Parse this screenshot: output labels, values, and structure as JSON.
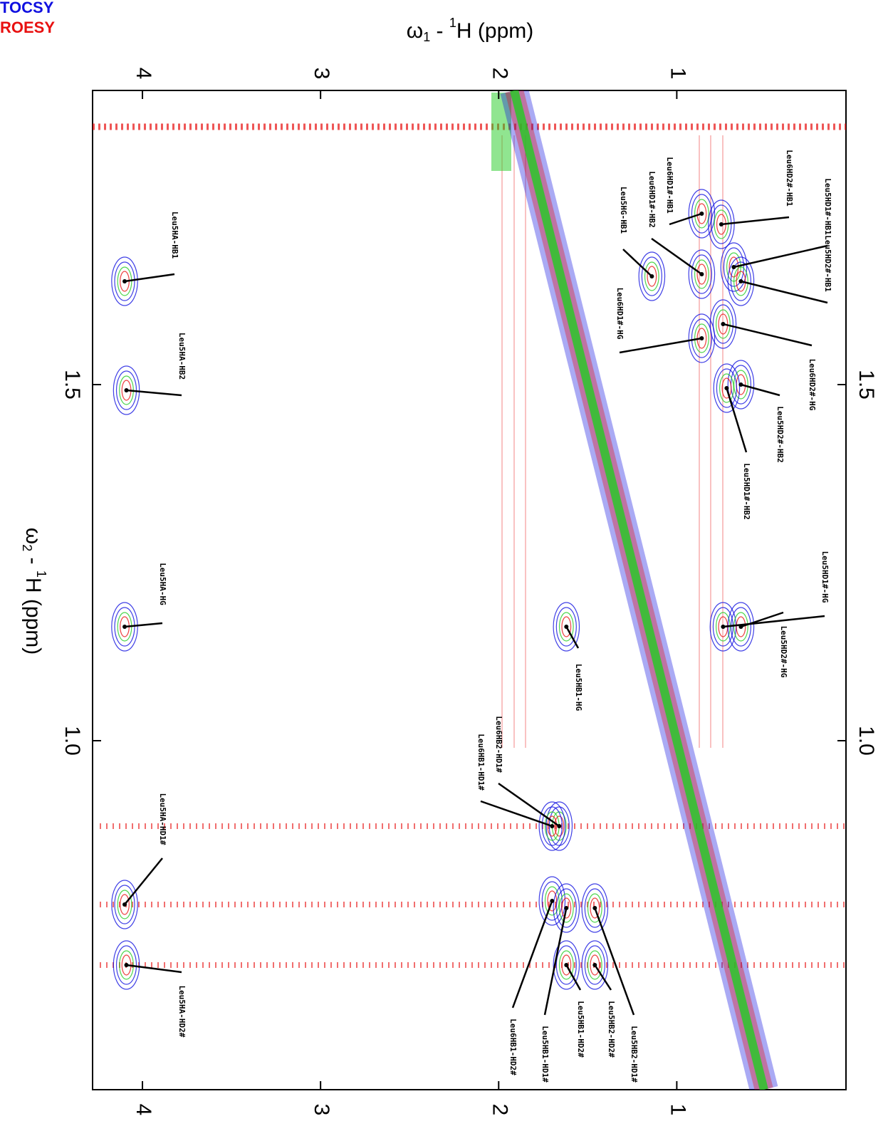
{
  "chart_data": {
    "type": "nmr2d",
    "legend": [
      {
        "name": "TOCSY",
        "color": "#1010e0"
      },
      {
        "name": "ROESY",
        "color": "#e81010"
      }
    ],
    "xlabel": [
      "ω",
      "1",
      " - ",
      "1",
      "H  (ppm)"
    ],
    "ylabel": [
      "ω",
      "2",
      " - ",
      "1",
      "H  (ppm)"
    ],
    "xlim": [
      4.28,
      0.05
    ],
    "ylim": [
      0.51,
      1.913
    ],
    "xticks": [
      4,
      3,
      2,
      1
    ],
    "yticks": [
      1.5,
      {
        "value": 1,
        "label": "1.0"
      }
    ],
    "peaks": [
      {
        "label": "Leu5HA-HB1",
        "x": 4.1,
        "y": 1.645
      },
      {
        "label": "Leu5HA-HB2",
        "x": 4.09,
        "y": 1.492
      },
      {
        "label": "Leu5HA-HG",
        "x": 4.1,
        "y": 1.16
      },
      {
        "label": "Leu5HA-HD1#",
        "x": 4.1,
        "y": 0.77
      },
      {
        "label": "Leu5HA-HD2#",
        "x": 4.09,
        "y": 0.685
      },
      {
        "label": "Leu5HG-HB1",
        "x": 1.14,
        "y": 1.652
      },
      {
        "label": "Leu6HD1#-HB1",
        "x": 0.86,
        "y": 1.74
      },
      {
        "label": "Leu6HD1#-HB2",
        "x": 0.86,
        "y": 1.655
      },
      {
        "label": "Leu6HD2#-HB1",
        "x": 0.75,
        "y": 1.725
      },
      {
        "label": "Leu5HD1#-HB1",
        "x": 0.68,
        "y": 1.665
      },
      {
        "label": "Leu5HD2#-HB1",
        "x": 0.64,
        "y": 1.645
      },
      {
        "label": "Leu6HD1#-HG",
        "x": 0.86,
        "y": 1.565
      },
      {
        "label": "Leu6HD2#-HG",
        "x": 0.74,
        "y": 1.585
      },
      {
        "label": "Leu5HD2#-HB2",
        "x": 0.64,
        "y": 1.5
      },
      {
        "label": "Leu5HD1#-HB2",
        "x": 0.72,
        "y": 1.495
      },
      {
        "label": "Leu5HD1#-HG",
        "x": 0.74,
        "y": 1.16
      },
      {
        "label": "Leu5HD2#-HG",
        "x": 0.64,
        "y": 1.16
      },
      {
        "label": "Leu5HB1-HG",
        "x": 1.62,
        "y": 1.16
      },
      {
        "label": "Leu6HB2-HD1#",
        "x": 1.66,
        "y": 0.88
      },
      {
        "label": "Leu6HB1-HD1#",
        "x": 1.7,
        "y": 0.88
      },
      {
        "label": "Leu6HB1-HD2#",
        "x": 1.7,
        "y": 0.775
      },
      {
        "label": "Leu5HB1-HD1#",
        "x": 1.62,
        "y": 0.765
      },
      {
        "label": "Leu5HB1-HD2#",
        "x": 1.62,
        "y": 0.685
      },
      {
        "label": "Leu5HB2-HD2#",
        "x": 1.46,
        "y": 0.685
      },
      {
        "label": "Leu5HB2-HD1#",
        "x": 1.46,
        "y": 0.765
      }
    ]
  }
}
